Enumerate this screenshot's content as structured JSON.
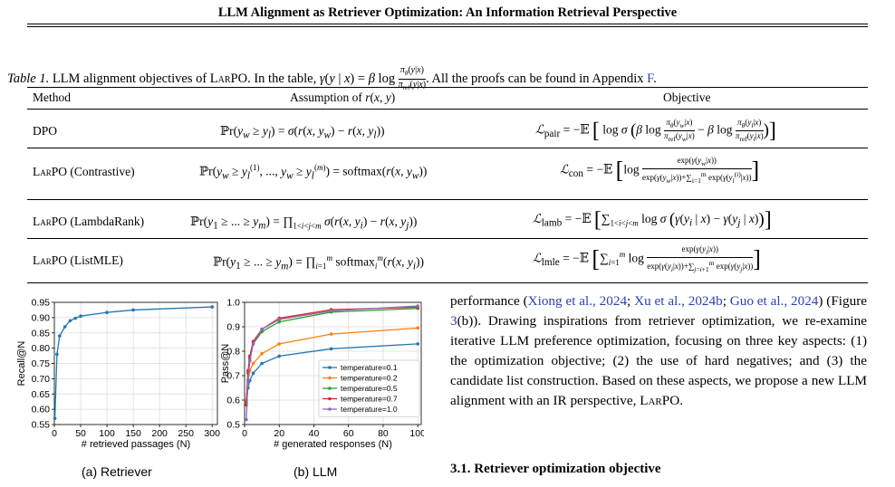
{
  "header": {
    "running_title": "LLM Alignment as Retriever Optimization: An Information Retrieval Perspective"
  },
  "table": {
    "caption_label": "Table 1.",
    "caption_text": "LLM alignment objectives of LARPO. In the table, γ(y | x) = β log πθ(y|x)/πref(y|x). All the proofs can be found in Appendix F.",
    "caption_pre": "LLM alignment objectives of",
    "caption_sc": "LarPO",
    "caption_mid": ". In the table,",
    "caption_formula": "γ(y | x) = β log πθ(y|x)/πref(y|x)",
    "caption_post": ". All the proofs can be found in Appendix",
    "caption_appendix": "F",
    "caption_end": ".",
    "headers": [
      "Method",
      "Assumption of r(x, y)",
      "Objective"
    ],
    "rows": [
      {
        "method": "DPO",
        "assumption": "ℙr(y_w ≥ y_l) = σ(r(x, y_w) − r(x, y_l))",
        "objective": "ℒpair = −𝔼 [ log σ ( β log πθ(yw|x)/πref(yw|x) − β log πθ(yl|x)/πref(yl|x) ) ]"
      },
      {
        "method": "LarPO (Contrastive)",
        "assumption": "ℙr(y_w ≥ y_l^(1), ..., y_w ≥ y_l^(m)) = softmax(r(x, y_w))",
        "objective": "ℒcon = −𝔼 [ log exp(γ(yw|x)) / ( exp(γ(yw|x)) + Σ_{i=1}^m exp(γ(yl^(i)|x)) ) ]"
      },
      {
        "method": "LarPO (LambdaRank)",
        "assumption": "ℙr(y_1 ≥ ... ≥ y_m) = ∏_{1<i<j<m} σ(r(x, y_i) − r(x, y_j))",
        "objective": "ℒlamb = −𝔼 [ Σ_{1<i<j<m} log σ ( γ(y_i | x) − γ(y_j | x) ) ]"
      },
      {
        "method": "LarPO (ListMLE)",
        "assumption": "ℙr(y_1 ≥ ... ≥ y_m) = ∏_{i=1}^m softmax_i^m(r(x, y_i))",
        "objective": "ℒlmle = −𝔼 [ Σ_{i=1}^m log exp(γ(y_i|x)) / ( exp(γ(y_i|x)) + Σ_{j=i+1}^m exp(γ(y_j|x)) ) ]"
      }
    ]
  },
  "figure_a": {
    "caption": "(a) Retriever",
    "chart_data": {
      "type": "line",
      "xlabel": "# retrieved passages (N)",
      "ylabel": "Recall@N",
      "xlim": [
        0,
        310
      ],
      "ylim": [
        0.55,
        0.95
      ],
      "xticks": [
        "0",
        "50",
        "100",
        "150",
        "200",
        "250",
        "300"
      ],
      "yticks": [
        "0.55",
        "0.60",
        "0.65",
        "0.70",
        "0.75",
        "0.80",
        "0.85",
        "0.90",
        "0.95"
      ],
      "grid": true,
      "series": [
        {
          "color": "#1f77b4",
          "x": [
            1,
            5,
            10,
            20,
            30,
            40,
            50,
            100,
            150,
            300
          ],
          "y": [
            0.57,
            0.78,
            0.84,
            0.87,
            0.89,
            0.898,
            0.905,
            0.917,
            0.925,
            0.935
          ]
        }
      ]
    }
  },
  "figure_b": {
    "caption": "(b) LLM",
    "chart_data": {
      "type": "line",
      "xlabel": "# generated responses (N)",
      "ylabel": "Pass@N",
      "xlim": [
        0,
        102
      ],
      "ylim": [
        0.5,
        1.0
      ],
      "xticks": [
        "0",
        "20",
        "40",
        "60",
        "80",
        "100"
      ],
      "yticks": [
        "0.5",
        "0.6",
        "0.7",
        "0.8",
        "0.9",
        "1.0"
      ],
      "grid": true,
      "legend": "bottom-right",
      "series": [
        {
          "name": "temperature=0.1",
          "color": "#1f77b4",
          "x": [
            1,
            2,
            3,
            5,
            10,
            20,
            50,
            100
          ],
          "y": [
            0.59,
            0.65,
            0.68,
            0.71,
            0.75,
            0.78,
            0.81,
            0.83
          ]
        },
        {
          "name": "temperature=0.2",
          "color": "#ff7f0e",
          "x": [
            1,
            2,
            3,
            5,
            10,
            20,
            50,
            100
          ],
          "y": [
            0.6,
            0.68,
            0.72,
            0.75,
            0.79,
            0.83,
            0.87,
            0.895
          ]
        },
        {
          "name": "temperature=0.5",
          "color": "#2ca02c",
          "x": [
            1,
            2,
            3,
            5,
            10,
            20,
            50,
            100
          ],
          "y": [
            0.59,
            0.71,
            0.77,
            0.83,
            0.88,
            0.92,
            0.96,
            0.975
          ]
        },
        {
          "name": "temperature=0.7",
          "color": "#d62728",
          "x": [
            1,
            2,
            3,
            5,
            10,
            20,
            50,
            100
          ],
          "y": [
            0.58,
            0.72,
            0.78,
            0.84,
            0.89,
            0.935,
            0.97,
            0.98
          ]
        },
        {
          "name": "temperature=1.0",
          "color": "#9467bd",
          "x": [
            1,
            2,
            3,
            5,
            10,
            20,
            50,
            100
          ],
          "y": [
            0.52,
            0.68,
            0.76,
            0.83,
            0.89,
            0.93,
            0.965,
            0.985
          ]
        }
      ]
    }
  },
  "body": {
    "paragraph": {
      "p1": "performance (",
      "cite1": "Xiong et al., 2024",
      "p2": "; ",
      "cite2": "Xu et al., 2024b",
      "p3": "; ",
      "cite3": "Guo et al., 2024",
      "p4": ") (Figure ",
      "fig_ref": "3",
      "p5": "(b)). Drawing inspirations from retriever optimization, we re-examine iterative LLM preference optimization, focusing on three key aspects: (1) the optimization objective; (2) the use of hard negatives; and (3) the candidate list construction. Based on these aspects, we propose a new LLM alignment with an IR perspective, ",
      "p6_sc": "LarPO",
      "p7": "."
    },
    "section_heading": "3.1. Retriever optimization objective"
  }
}
